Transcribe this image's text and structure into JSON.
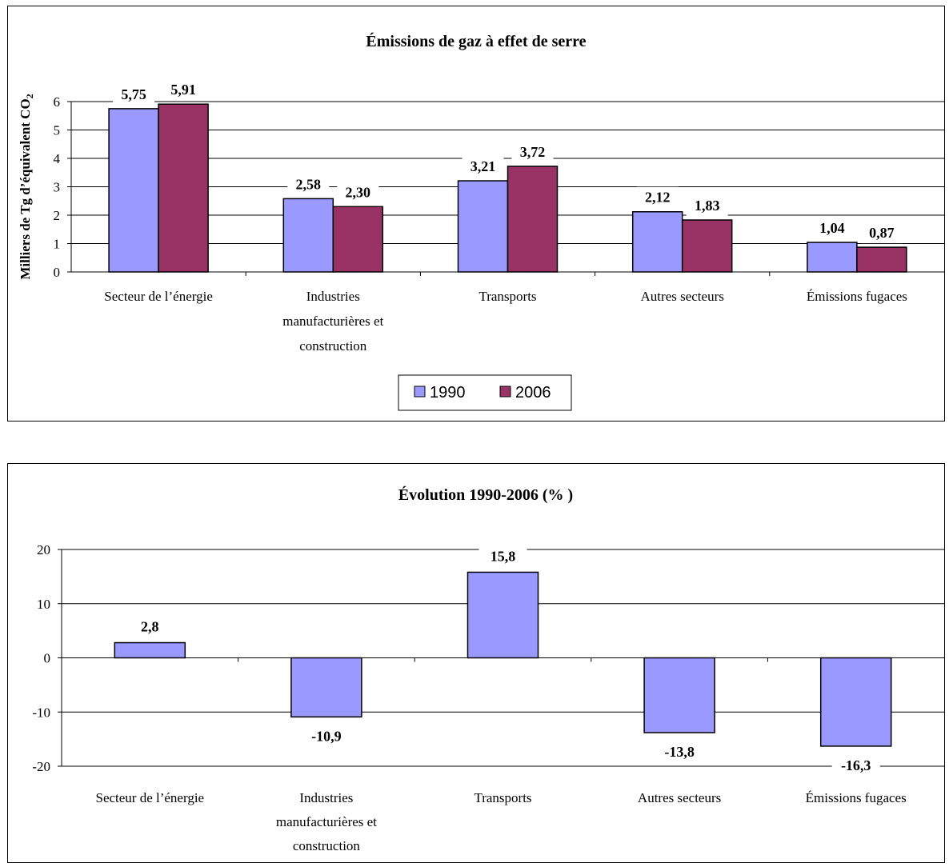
{
  "chart_data": [
    {
      "type": "bar",
      "title": "Émissions de gaz à effet de serre",
      "ylabel": "Milliers de Tg d’équivalent CO",
      "ylabel_subscript": "2",
      "ylim": [
        0,
        6
      ],
      "yticks": [
        0,
        1,
        2,
        3,
        4,
        5,
        6
      ],
      "grid": true,
      "legend_position": "bottom",
      "categories": [
        [
          "Secteur de l’énergie"
        ],
        [
          "Industries",
          "manufacturières et",
          "construction"
        ],
        [
          "Transports"
        ],
        [
          "Autres secteurs"
        ],
        [
          "Émissions fugaces"
        ]
      ],
      "series": [
        {
          "name": "1990",
          "color": "#9999ff",
          "values": [
            5.75,
            2.58,
            3.21,
            2.12,
            1.04
          ],
          "labels": [
            "5,75",
            "2,58",
            "3,21",
            "2,12",
            "1,04"
          ]
        },
        {
          "name": "2006",
          "color": "#993366",
          "values": [
            5.91,
            2.3,
            3.72,
            1.83,
            0.87
          ],
          "labels": [
            "5,91",
            "2,30",
            "3,72",
            "1,83",
            "0,87"
          ]
        }
      ]
    },
    {
      "type": "bar",
      "title": "Évolution 1990-2006 (% )",
      "ylim": [
        -20,
        20
      ],
      "yticks": [
        20,
        10,
        0,
        -10,
        -20
      ],
      "ytick_labels": [
        "20",
        "10",
        "0",
        "-10",
        "-20"
      ],
      "grid": true,
      "categories": [
        [
          "Secteur de l’énergie"
        ],
        [
          "Industries",
          "manufacturières et",
          "construction"
        ],
        [
          "Transports"
        ],
        [
          "Autres secteurs"
        ],
        [
          "Émissions fugaces"
        ]
      ],
      "series": [
        {
          "color": "#9999ff",
          "values": [
            2.8,
            -10.9,
            15.8,
            -13.8,
            -16.3
          ],
          "labels": [
            "2,8",
            "-10,9",
            "15,8",
            "-13,8",
            "-16,3"
          ]
        }
      ]
    }
  ]
}
